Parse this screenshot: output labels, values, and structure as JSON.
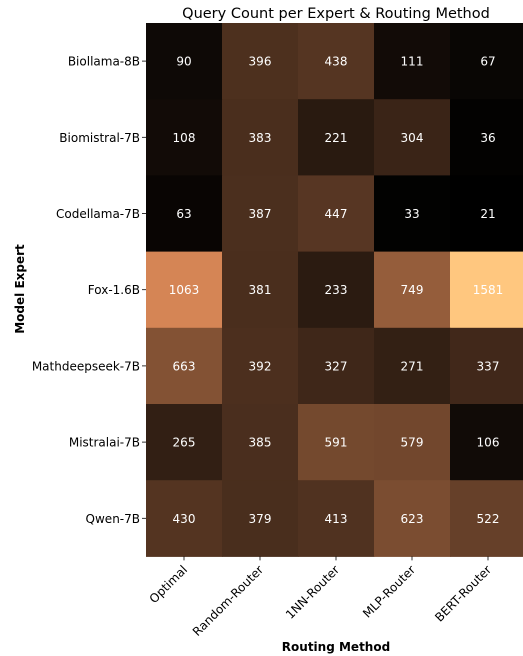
{
  "chart_data": {
    "type": "heatmap",
    "title": "Query Count per Expert & Routing Method",
    "xlabel": "Routing Method",
    "ylabel": "Model Expert",
    "x_categories": [
      "Optimal",
      "Random-Router",
      "1NN-Router",
      "MLP-Router",
      "BERT-Router"
    ],
    "y_categories": [
      "Biollama-8B",
      "Biomistral-7B",
      "Codellama-7B",
      "Fox-1.6B",
      "Mathdeepseek-7B",
      "Mistralai-7B",
      "Qwen-7B"
    ],
    "values": [
      [
        90,
        396,
        438,
        111,
        67
      ],
      [
        108,
        383,
        221,
        304,
        36
      ],
      [
        63,
        387,
        447,
        33,
        21
      ],
      [
        1063,
        381,
        233,
        749,
        1581
      ],
      [
        663,
        392,
        327,
        271,
        337
      ],
      [
        265,
        385,
        591,
        579,
        106
      ],
      [
        430,
        379,
        413,
        623,
        522
      ]
    ],
    "colormap": "copper",
    "value_range": [
      21,
      1581
    ],
    "annotation_color": "#ffffff"
  }
}
